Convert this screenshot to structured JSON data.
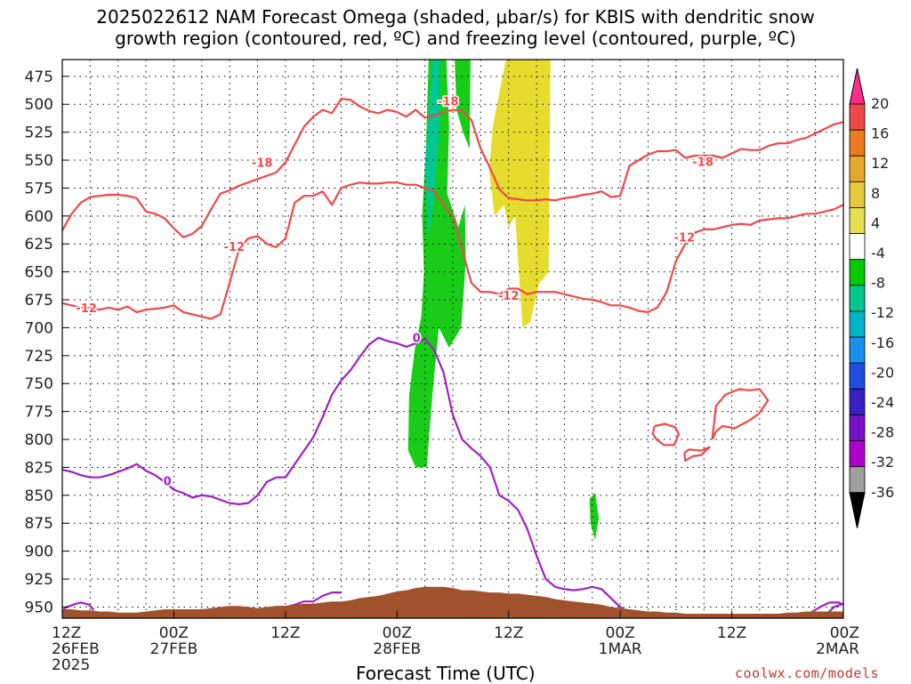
{
  "title_line1": "2025022612 NAM Forecast Omega (shaded, μbar/s) for KBIS with dendritic snow",
  "title_line2": "growth region (contoured, red, ºC) and freezing level (contoured, purple, ºC)",
  "credit": "coolwx.com/models",
  "chart_data": {
    "type": "heatmap",
    "xlabel": "Forecast Time (UTC)",
    "ylabel": "",
    "y_axis": {
      "units": "hPa",
      "inverted": true,
      "range": [
        460,
        960
      ],
      "ticks": [
        475,
        500,
        525,
        550,
        575,
        600,
        625,
        650,
        675,
        700,
        725,
        750,
        775,
        800,
        825,
        850,
        875,
        900,
        925,
        950
      ]
    },
    "x_axis": {
      "range_hours": [
        0,
        84
      ],
      "ticks": [
        {
          "h": 0,
          "l1": "12Z",
          "l2": "26FEB",
          "l3": "2025"
        },
        {
          "h": 12,
          "l1": "00Z",
          "l2": "27FEB",
          "l3": ""
        },
        {
          "h": 24,
          "l1": "12Z",
          "l2": "",
          "l3": ""
        },
        {
          "h": 36,
          "l1": "00Z",
          "l2": "28FEB",
          "l3": ""
        },
        {
          "h": 48,
          "l1": "12Z",
          "l2": "",
          "l3": ""
        },
        {
          "h": 60,
          "l1": "00Z",
          "l2": "1MAR",
          "l3": ""
        },
        {
          "h": 72,
          "l1": "12Z",
          "l2": "",
          "l3": ""
        },
        {
          "h": 84,
          "l1": "00Z",
          "l2": "2MAR",
          "l3": ""
        }
      ]
    },
    "grid": true,
    "colorbar": {
      "position": "right",
      "labels": [
        "20",
        "16",
        "12",
        "8",
        "4",
        "-4",
        "-8",
        "-12",
        "-16",
        "-20",
        "-24",
        "-28",
        "-32",
        "-36"
      ],
      "colors": [
        "#ff2a8c",
        "#f04848",
        "#ee7a1e",
        "#e6a82c",
        "#e6c83a",
        "#e6e050",
        "#ffffff",
        "#00cc00",
        "#00c890",
        "#00b4c8",
        "#1a90ee",
        "#1c4ee0",
        "#3a1ec8",
        "#7a10c8",
        "#b000d0",
        "#a0a0a0",
        "#000000"
      ]
    },
    "omega_shading": [
      {
        "name": "green",
        "color": "#18cc18",
        "level": -4,
        "points": [
          [
            38.0,
            825
          ],
          [
            37.2,
            810
          ],
          [
            37.3,
            760
          ],
          [
            37.9,
            720
          ],
          [
            38.6,
            690
          ],
          [
            38.9,
            650
          ],
          [
            38.7,
            600
          ],
          [
            39.1,
            540
          ],
          [
            39.4,
            460
          ],
          [
            41.3,
            460
          ],
          [
            41.6,
            520
          ],
          [
            41.4,
            580
          ],
          [
            42.6,
            610
          ],
          [
            43.3,
            590
          ],
          [
            43.4,
            640
          ],
          [
            42.9,
            700
          ],
          [
            41.6,
            718
          ],
          [
            40.5,
            700
          ],
          [
            39.8,
            760
          ],
          [
            39.2,
            825
          ]
        ]
      },
      {
        "name": "green-upper",
        "color": "#18cc18",
        "level": -4,
        "points": [
          [
            42.2,
            460
          ],
          [
            43.9,
            460
          ],
          [
            43.8,
            540
          ],
          [
            43.1,
            525
          ],
          [
            42.4,
            505
          ]
        ]
      },
      {
        "name": "teal",
        "color": "#00c890",
        "level": -8,
        "points": [
          [
            39.5,
            490
          ],
          [
            39.8,
            460
          ],
          [
            40.6,
            460
          ],
          [
            40.6,
            520
          ],
          [
            40.0,
            580
          ],
          [
            39.4,
            620
          ],
          [
            39.0,
            560
          ]
        ]
      },
      {
        "name": "green-low",
        "color": "#18cc18",
        "level": -4,
        "points": [
          [
            56.7,
            853
          ],
          [
            57.3,
            848
          ],
          [
            57.7,
            870
          ],
          [
            57.3,
            890
          ],
          [
            56.8,
            875
          ]
        ]
      },
      {
        "name": "yellow",
        "color": "#e6dc2e",
        "level": 4,
        "points": [
          [
            46.3,
            520
          ],
          [
            47.7,
            460
          ],
          [
            52.5,
            460
          ],
          [
            52.3,
            650
          ],
          [
            51.3,
            660
          ],
          [
            50.3,
            695
          ],
          [
            49.5,
            700
          ],
          [
            48.7,
            600
          ],
          [
            48.0,
            610
          ],
          [
            47.5,
            590
          ],
          [
            46.5,
            600
          ],
          [
            45.9,
            560
          ]
        ]
      }
    ],
    "contours": [
      {
        "name": "-18 °C",
        "color": "#f04848",
        "label_positions": [
          {
            "text": "-18",
            "x": 21.5,
            "y": 552
          },
          {
            "text": "-18",
            "x": 41.5,
            "y": 497
          },
          {
            "text": "-18",
            "x": 68.9,
            "y": 551
          }
        ],
        "x": [
          0,
          1,
          2,
          3,
          4,
          5,
          6,
          7,
          8,
          9,
          10,
          11,
          12,
          13,
          14,
          15,
          16,
          17,
          18,
          19,
          20,
          21,
          22,
          23,
          24,
          25,
          26,
          27,
          28,
          29,
          30,
          31,
          32,
          33,
          34,
          35,
          36,
          37,
          38,
          39,
          40,
          41,
          42,
          43,
          44,
          45,
          46,
          47,
          48,
          49,
          50,
          51,
          52,
          53,
          54,
          55,
          56,
          57,
          58,
          59,
          60,
          61,
          62,
          63,
          64,
          65,
          66,
          67,
          68,
          69,
          70,
          71,
          72,
          73,
          74,
          75,
          76,
          77,
          78,
          79,
          80,
          81,
          82,
          83,
          84
        ],
        "y": [
          613,
          598,
          588,
          583,
          582,
          581,
          581,
          582,
          584,
          596,
          598,
          602,
          611,
          619,
          616,
          609,
          594,
          580,
          577,
          573,
          570,
          567,
          564,
          561,
          552,
          536,
          520,
          511,
          505,
          508,
          495,
          496,
          502,
          506,
          508,
          505,
          507,
          511,
          505,
          512,
          510,
          507,
          505,
          506,
          514,
          540,
          557,
          576,
          584,
          585,
          586,
          586,
          585,
          586,
          584,
          583,
          581,
          580,
          578,
          583,
          582,
          555,
          550,
          545,
          542,
          542,
          541,
          548,
          546,
          546,
          546,
          548,
          544,
          540,
          541,
          541,
          537,
          535,
          535,
          532,
          530,
          526,
          522,
          518,
          516
        ]
      },
      {
        "name": "-12 °C",
        "color": "#f04848",
        "label_positions": [
          {
            "text": "-12",
            "x": 2.6,
            "y": 682
          },
          {
            "text": "-12",
            "x": 18.5,
            "y": 627
          },
          {
            "text": "-12",
            "x": 48.0,
            "y": 671
          },
          {
            "text": "-12",
            "x": 66.9,
            "y": 619
          }
        ],
        "x": [
          0,
          1,
          2,
          3,
          4,
          5,
          6,
          7,
          8,
          9,
          10,
          11,
          12,
          13,
          14,
          15,
          16,
          17,
          18,
          19,
          20,
          21,
          22,
          23,
          24,
          25,
          26,
          27,
          28,
          29,
          30,
          31,
          32,
          33,
          34,
          35,
          36,
          37,
          38,
          39,
          40,
          41,
          42,
          43,
          44,
          45,
          46,
          47,
          48,
          49,
          50,
          51,
          52,
          53,
          54,
          55,
          56,
          57,
          58,
          59,
          60,
          61,
          62,
          63,
          64,
          65,
          66,
          67,
          68,
          69,
          70,
          71,
          72,
          73,
          74,
          75,
          76,
          77,
          78,
          79,
          80,
          81,
          82,
          83,
          84
        ],
        "y": [
          678,
          680,
          682,
          682,
          684,
          682,
          684,
          681,
          686,
          684,
          683,
          682,
          680,
          686,
          688,
          690,
          692,
          688,
          660,
          630,
          620,
          618,
          625,
          628,
          620,
          588,
          582,
          582,
          578,
          590,
          575,
          572,
          570,
          571,
          571,
          570,
          570,
          572,
          572,
          575,
          578,
          590,
          600,
          630,
          660,
          668,
          668,
          670,
          665,
          665,
          670,
          668,
          668,
          668,
          670,
          672,
          674,
          675,
          677,
          680,
          680,
          682,
          685,
          686,
          682,
          668,
          640,
          625,
          615,
          612,
          612,
          610,
          608,
          607,
          608,
          604,
          603,
          602,
          602,
          600,
          598,
          598,
          596,
          594,
          590
        ]
      },
      {
        "name": "-12 °C ring 1",
        "color": "#f04848",
        "x": [
          63.7,
          64.8,
          65.9,
          66.3,
          65.8,
          64.7,
          63.9,
          63.5,
          63.7
        ],
        "y": [
          788,
          786,
          789,
          795,
          805,
          805,
          800,
          795,
          788
        ]
      },
      {
        "name": "-12 °C ring 2",
        "color": "#f04848",
        "x": [
          66.9,
          67.4,
          68.7,
          69.6,
          68.7,
          67.8,
          67.0,
          66.9
        ],
        "y": [
          812,
          809,
          810,
          807,
          814,
          815,
          819,
          812
        ]
      },
      {
        "name": "-12 °C ring 3",
        "color": "#f04848",
        "x": [
          69.9,
          70.3,
          71.3,
          72.8,
          73.9,
          75.0,
          75.9,
          74.9,
          73.9,
          72.3,
          71.0,
          70.3,
          69.9
        ],
        "y": [
          800,
          770,
          760,
          755,
          756,
          755,
          765,
          777,
          783,
          790,
          788,
          793,
          800
        ]
      },
      {
        "name": "0 °C",
        "color": "#a020c8",
        "label_positions": [
          {
            "text": "0",
            "x": 11.3,
            "y": 837
          },
          {
            "text": "0",
            "x": 38.1,
            "y": 709
          }
        ],
        "x": [
          0,
          1,
          2,
          3,
          4,
          5,
          6,
          7,
          8,
          9,
          10,
          11,
          12,
          13,
          14,
          15,
          16,
          17,
          18,
          19,
          20,
          21,
          22,
          23,
          24,
          25,
          26,
          27,
          28,
          29,
          30,
          31,
          32,
          33,
          34,
          35,
          36,
          37,
          38,
          39,
          40,
          41,
          42,
          43,
          44,
          45,
          46,
          47,
          48,
          49,
          50,
          51,
          52,
          53,
          54,
          55,
          56,
          57,
          58,
          59,
          60,
          61,
          62,
          63,
          64,
          65,
          66,
          67,
          68,
          69,
          70,
          71,
          72,
          73,
          74,
          75,
          76,
          77,
          78,
          79,
          80,
          81,
          82,
          83,
          84
        ],
        "y": [
          827,
          829,
          832,
          834,
          834,
          832,
          829,
          826,
          822,
          828,
          832,
          838,
          845,
          848,
          852,
          850,
          851,
          854,
          857,
          858,
          857,
          850,
          838,
          834,
          834,
          822,
          810,
          798,
          780,
          760,
          747,
          738,
          726,
          715,
          709,
          712,
          714,
          717,
          714,
          710,
          720,
          740,
          778,
          800,
          808,
          815,
          825,
          850,
          855,
          863,
          880,
          904,
          925,
          932,
          934,
          935,
          934,
          932,
          934,
          942,
          950,
          955,
          958,
          958,
          958,
          958,
          958,
          958,
          958,
          958,
          958,
          958,
          958,
          958,
          958,
          958,
          958,
          958,
          958,
          958,
          958,
          958,
          958,
          950,
          947
        ]
      },
      {
        "name": "0 °C low",
        "color": "#a020c8",
        "x": [
          0,
          0.5,
          1.5,
          2.0,
          2.5,
          2.9,
          3.4
        ],
        "y": [
          953,
          950,
          947,
          946,
          947,
          948,
          953
        ]
      },
      {
        "name": "0 °C surface",
        "color": "#a020c8",
        "x": [
          20.0,
          21.0,
          22.0,
          23.0,
          24.0,
          25.0,
          26.0,
          27.0,
          28.0,
          29.0,
          30.0
        ],
        "y": [
          958,
          955,
          952,
          950,
          950,
          948,
          945,
          945,
          940,
          937,
          937
        ]
      },
      {
        "name": "0 °C surface 2",
        "color": "#a020c8",
        "x": [
          79.5,
          80.5,
          81.5,
          82.5,
          83.5,
          84
        ],
        "y": [
          958,
          955,
          950,
          946,
          946,
          948
        ]
      }
    ],
    "terrain": {
      "color": "#a0522d",
      "top_hPa": [
        952,
        952,
        953,
        953,
        954,
        954,
        955,
        955,
        955,
        954,
        953,
        952,
        952,
        952,
        952,
        952,
        951,
        950,
        949,
        949,
        950,
        951,
        950,
        949,
        949,
        948,
        947,
        947,
        946,
        945,
        945,
        944,
        942,
        941,
        940,
        938,
        936,
        935,
        933,
        932,
        932,
        932,
        933,
        935,
        935,
        936,
        937,
        937,
        938,
        938,
        939,
        940,
        941,
        943,
        944,
        945,
        946,
        947,
        948,
        950,
        951,
        952,
        953,
        954,
        954,
        955,
        955,
        956,
        956,
        956,
        956,
        956,
        956,
        956,
        956,
        956,
        956,
        956,
        955,
        955,
        954,
        954,
        954,
        954,
        954
      ]
    }
  }
}
